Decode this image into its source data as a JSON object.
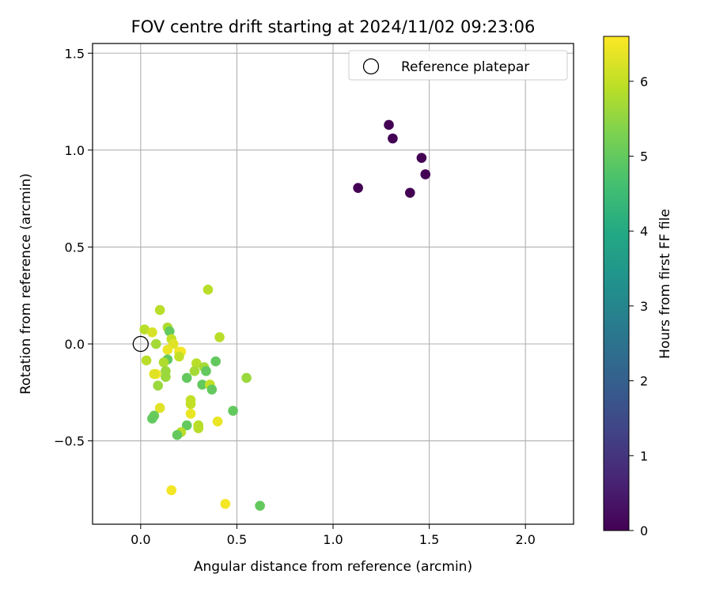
{
  "chart_data": {
    "type": "scatter",
    "title": "FOV centre drift starting at 2024/11/02 09:23:06",
    "xlabel": "Angular distance from reference (arcmin)",
    "ylabel": "Rotation from reference (arcmin)",
    "xlim": [
      -0.25,
      2.25
    ],
    "ylim": [
      -0.93,
      1.55
    ],
    "xticks": [
      0.0,
      0.5,
      1.0,
      1.5,
      2.0
    ],
    "xtick_labels": [
      "0.0",
      "0.5",
      "1.0",
      "1.5",
      "2.0"
    ],
    "yticks": [
      -0.5,
      0.0,
      0.5,
      1.0,
      1.5
    ],
    "ytick_labels": [
      "−0.5",
      "0.0",
      "0.5",
      "1.0",
      "1.5"
    ],
    "grid": true,
    "legend": {
      "position": "top-right",
      "entries": [
        "Reference platepar"
      ]
    },
    "reference_point": {
      "name": "Reference platepar",
      "x": 0.0,
      "y": 0.0,
      "marker": "open-circle"
    },
    "colorbar": {
      "label": "Hours from first FF file",
      "colormap": "viridis",
      "range": [
        0,
        6.6
      ],
      "ticks": [
        0,
        1,
        2,
        3,
        4,
        5,
        6
      ],
      "tick_labels": [
        "0",
        "1",
        "2",
        "3",
        "4",
        "5",
        "6"
      ]
    },
    "points": [
      {
        "x": 1.29,
        "y": 1.13,
        "c": 0.0
      },
      {
        "x": 1.31,
        "y": 1.06,
        "c": 0.0
      },
      {
        "x": 1.46,
        "y": 0.96,
        "c": 0.0
      },
      {
        "x": 1.48,
        "y": 0.875,
        "c": 0.0
      },
      {
        "x": 1.13,
        "y": 0.805,
        "c": 0.0
      },
      {
        "x": 1.4,
        "y": 0.78,
        "c": 0.0
      },
      {
        "x": 0.35,
        "y": 0.28,
        "c": 5.9
      },
      {
        "x": 0.1,
        "y": 0.175,
        "c": 5.9
      },
      {
        "x": 0.02,
        "y": 0.075,
        "c": 5.9
      },
      {
        "x": 0.06,
        "y": 0.06,
        "c": 6.2
      },
      {
        "x": 0.14,
        "y": 0.085,
        "c": 5.8
      },
      {
        "x": 0.15,
        "y": 0.065,
        "c": 5.0
      },
      {
        "x": 0.08,
        "y": 0.0,
        "c": 5.7
      },
      {
        "x": 0.16,
        "y": 0.025,
        "c": 6.0
      },
      {
        "x": 0.17,
        "y": 0.0,
        "c": 6.3
      },
      {
        "x": 0.14,
        "y": -0.03,
        "c": 6.4
      },
      {
        "x": 0.2,
        "y": -0.04,
        "c": 6.4
      },
      {
        "x": 0.21,
        "y": -0.04,
        "c": 6.5
      },
      {
        "x": 0.2,
        "y": -0.065,
        "c": 6.0
      },
      {
        "x": 0.41,
        "y": 0.035,
        "c": 5.9
      },
      {
        "x": 0.03,
        "y": -0.085,
        "c": 5.9
      },
      {
        "x": 0.14,
        "y": -0.08,
        "c": 5.0
      },
      {
        "x": 0.12,
        "y": -0.095,
        "c": 5.8
      },
      {
        "x": 0.13,
        "y": -0.14,
        "c": 5.6
      },
      {
        "x": 0.08,
        "y": -0.155,
        "c": 6.5
      },
      {
        "x": 0.07,
        "y": -0.155,
        "c": 6.3
      },
      {
        "x": 0.13,
        "y": -0.17,
        "c": 5.6
      },
      {
        "x": 0.29,
        "y": -0.1,
        "c": 5.9
      },
      {
        "x": 0.28,
        "y": -0.14,
        "c": 5.7
      },
      {
        "x": 0.33,
        "y": -0.12,
        "c": 5.7
      },
      {
        "x": 0.34,
        "y": -0.14,
        "c": 5.0
      },
      {
        "x": 0.39,
        "y": -0.09,
        "c": 5.0
      },
      {
        "x": 0.24,
        "y": -0.175,
        "c": 5.0
      },
      {
        "x": 0.55,
        "y": -0.175,
        "c": 5.6
      },
      {
        "x": 0.09,
        "y": -0.215,
        "c": 5.6
      },
      {
        "x": 0.32,
        "y": -0.21,
        "c": 5.0
      },
      {
        "x": 0.36,
        "y": -0.21,
        "c": 6.0
      },
      {
        "x": 0.37,
        "y": -0.235,
        "c": 5.0
      },
      {
        "x": 0.26,
        "y": -0.29,
        "c": 6.0
      },
      {
        "x": 0.26,
        "y": -0.31,
        "c": 6.0
      },
      {
        "x": 0.1,
        "y": -0.33,
        "c": 6.3
      },
      {
        "x": 0.48,
        "y": -0.345,
        "c": 5.0
      },
      {
        "x": 0.26,
        "y": -0.36,
        "c": 6.4
      },
      {
        "x": 0.07,
        "y": -0.37,
        "c": 5.1
      },
      {
        "x": 0.06,
        "y": -0.385,
        "c": 5.0
      },
      {
        "x": 0.4,
        "y": -0.4,
        "c": 6.4
      },
      {
        "x": 0.24,
        "y": -0.42,
        "c": 5.0
      },
      {
        "x": 0.3,
        "y": -0.42,
        "c": 5.9
      },
      {
        "x": 0.3,
        "y": -0.435,
        "c": 5.9
      },
      {
        "x": 0.21,
        "y": -0.455,
        "c": 5.9
      },
      {
        "x": 0.19,
        "y": -0.47,
        "c": 5.0
      },
      {
        "x": 0.16,
        "y": -0.755,
        "c": 6.5
      },
      {
        "x": 0.44,
        "y": -0.825,
        "c": 6.5
      },
      {
        "x": 0.62,
        "y": -0.835,
        "c": 5.0
      }
    ]
  }
}
